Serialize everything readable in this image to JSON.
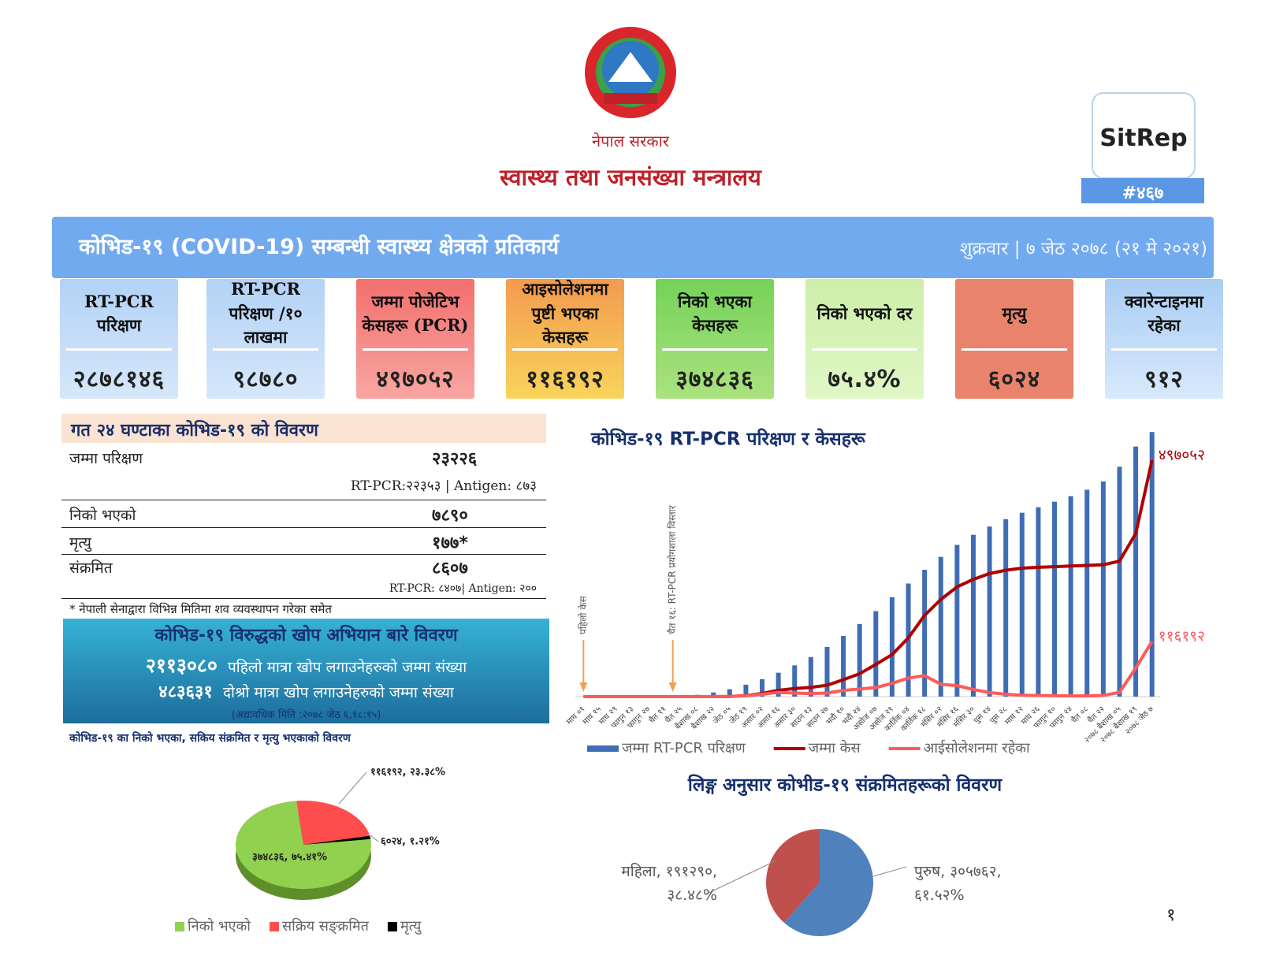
{
  "header": {
    "emblem_caption": "नेपाल सरकार",
    "ministry": "स्वास्थ्य तथा जनसंख्या मन्त्रालय",
    "sitrep": "SitRep",
    "sitrep_number": "#४६७"
  },
  "banner": {
    "title": "कोभिड-१९ (COVID-19) सम्बन्धी स्वास्थ्य क्षेत्रको प्रतिकार्य",
    "date": "शुक्रवार | ७ जेठ २०७८ (२१ मे २०२१)"
  },
  "cards": [
    {
      "label": "RT-PCR परिक्षण",
      "value": "२८७८१४६"
    },
    {
      "label": "RT-PCR परिक्षण /१० लाखमा",
      "value": "९८७८०"
    },
    {
      "label": "जम्मा पोजेटिभ केसहरू (PCR)",
      "value": "४९७०५२"
    },
    {
      "label": "आइसोलेशनमा पुष्टी भएका केसहरू",
      "value": "११६१९२"
    },
    {
      "label": "निको भएका केसहरू",
      "value": "३७४८३६"
    },
    {
      "label": "निको भएको दर",
      "value": "७५.४%"
    },
    {
      "label": "मृत्यु",
      "value": "६०२४"
    },
    {
      "label": "क्वारेन्टाइनमा रहेका",
      "value": "९१२"
    }
  ],
  "last_24h": {
    "title": "गत २४ घण्टाका कोभिड-१९ को विवरण",
    "rows": [
      {
        "label": "जम्मा परिक्षण",
        "value": "२३२२६",
        "detail": "RT-PCR:२२३५३ | Antigen: ८७३"
      },
      {
        "label": "निको भएको",
        "value": "७८९०"
      },
      {
        "label": "मृत्यु",
        "value": "१७७*"
      },
      {
        "label": "संक्रमित",
        "value": "८६०७",
        "detail": "RT-PCR: ८४०७| Antigen: २००"
      }
    ],
    "note": "* नेपाली सेनाद्वारा विभिन्न मितिमा शव व्यवस्थापन गरेका समेत"
  },
  "vaccination": {
    "title": "कोभिड-१९ विरुद्धको खोप अभियान बारे विवरण",
    "rows": [
      {
        "value": "२११३०८०",
        "label": "पहिलो मात्रा खोप लगाउनेहरुको जम्मा संख्या"
      },
      {
        "value": "४८३६३१",
        "label": "दोश्रो मात्रा खोप लगाउनेहरुको जम्मा संख्या"
      }
    ],
    "updated": "(अद्यावधिक मिति :२०७८ जेठ ६,१८:१५)"
  },
  "page_number": "१",
  "chart_data": [
    {
      "type": "bar",
      "title": "कोभिड-१९ RT-PCR परिक्षण र केसहरू",
      "categories": [
        "माघ ०१",
        "माघ १५",
        "माघ २९",
        "फागुन १३",
        "फागुन २७",
        "चैत ११",
        "चैत २५",
        "बैशाख ०८",
        "बैशाख २२",
        "जेठ ०५",
        "जेठ १९",
        "असार ०२",
        "असार १६",
        "असार ३०",
        "साउन १३",
        "साउन २७",
        "भदौ १०",
        "भदौ २४",
        "असोज ०७",
        "असोज २१",
        "कार्तिक ०४",
        "कार्तिक १८",
        "मंसिर ०२",
        "मंसिर १६",
        "मंसिर ३०",
        "पुस १४",
        "पुस २८",
        "माघ १२",
        "माघ २६",
        "फागुन १०",
        "फागुन २४",
        "चैत ०८",
        "चैत २२",
        "२०७८ बैशाख ०५",
        "२०७८ बैशाख १९",
        "२०७८ जेठ ७"
      ],
      "series": [
        {
          "name": "जम्मा RT-PCR परिक्षण",
          "color": "#3f6cb5",
          "type": "bar",
          "axis": "y",
          "values": [
            0,
            0,
            0,
            0,
            0,
            2000,
            8000,
            20000,
            45000,
            80000,
            130000,
            190000,
            260000,
            340000,
            430000,
            540000,
            660000,
            790000,
            930000,
            1080000,
            1230000,
            1380000,
            1520000,
            1650000,
            1760000,
            1850000,
            1930000,
            2000000,
            2060000,
            2120000,
            2180000,
            2250000,
            2340000,
            2500000,
            2720000,
            2878146
          ]
        },
        {
          "name": "जम्मा केस",
          "color": "#b00000",
          "type": "line",
          "axis": "y2",
          "values": [
            0,
            0,
            0,
            0,
            0,
            0,
            9,
            31,
            82,
            375,
            1811,
            6591,
            13248,
            16945,
            19547,
            23948,
            35529,
            48138,
            67803,
            88373,
            123580,
            170743,
            204242,
            230755,
            246510,
            258888,
            265784,
            270092,
            271981,
            273210,
            274675,
            275820,
            277309,
            285000,
            343000,
            497052
          ],
          "value_labels": [
            null,
            null,
            null,
            null,
            null,
            null,
            null,
            null,
            null,
            null,
            null,
            null,
            null,
            null,
            null,
            null,
            null,
            null,
            null,
            null,
            null,
            null,
            null,
            null,
            null,
            null,
            null,
            null,
            null,
            null,
            null,
            null,
            null,
            null,
            null,
            "४९७०५२"
          ]
        },
        {
          "name": "आईसोलेशनमा रहेका",
          "color": "#ff5a5a",
          "type": "line",
          "axis": "y2",
          "values": [
            0,
            0,
            0,
            0,
            0,
            0,
            0,
            25,
            70,
            330,
            1600,
            5000,
            9000,
            7500,
            6500,
            7500,
            13000,
            16000,
            19000,
            28000,
            39000,
            44000,
            26000,
            23000,
            15000,
            8500,
            5000,
            3000,
            2200,
            1900,
            1500,
            1400,
            2400,
            9000,
            60000,
            116192
          ],
          "value_labels": [
            null,
            null,
            null,
            null,
            null,
            null,
            null,
            null,
            null,
            null,
            null,
            null,
            null,
            null,
            null,
            null,
            null,
            null,
            null,
            null,
            null,
            null,
            null,
            null,
            null,
            null,
            null,
            null,
            null,
            null,
            null,
            null,
            null,
            null,
            null,
            "११६१९२"
          ]
        }
      ],
      "ylim": [
        0,
        3000000
      ],
      "y2lim": [
        0,
        580000
      ],
      "grid": false,
      "annotations": [
        "पहिलो केस",
        "चैत १६: RT-PCR प्रयोगशाला विस्तार"
      ],
      "legend": "bottom"
    },
    {
      "type": "pie",
      "title": "कोभिड-१९ का निको भएका, सकिय संक्रमित र मृत्यु भएकाको विवरण",
      "categories": [
        "निको भएको",
        "सक्रिय सङ्क्रमित",
        "मृत्यु"
      ],
      "values": [
        75.41,
        23.38,
        1.21
      ],
      "value_labels": [
        "३७४८३६, ७५.४१%",
        "११६१९२, २३.३८%",
        "६०२४, १.२१%"
      ],
      "colors": [
        "#92d050",
        "#ff4d4d",
        "#000000"
      ],
      "legend": "bottom"
    },
    {
      "type": "pie",
      "title": "लिङ्ग अनुसार कोभीड-१९ संक्रमितहरूको विवरण",
      "categories": [
        "महिला",
        "पुरुष"
      ],
      "values": [
        38.48,
        61.52
      ],
      "value_labels": [
        "महिला, १९१२९०, ३८.४८%",
        "पुरुष, ३०५७६२, ६१.५२%"
      ],
      "colors": [
        "#c0504d",
        "#4f81bd"
      ],
      "legend": "none"
    }
  ]
}
